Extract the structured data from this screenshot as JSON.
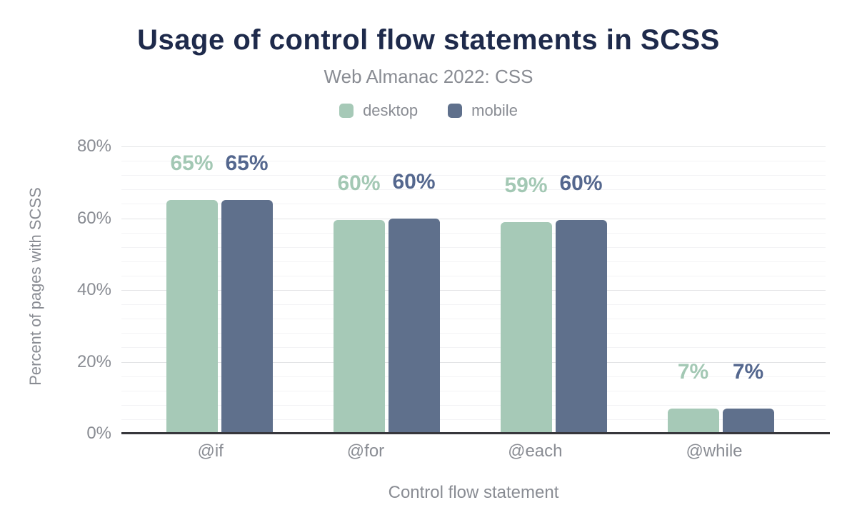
{
  "chart_data": {
    "type": "bar",
    "title": "Usage of control flow statements in SCSS",
    "subtitle": "Web Almanac 2022: CSS",
    "xlabel": "Control flow statement",
    "ylabel": "Percent of pages with SCSS",
    "categories": [
      "@if",
      "@for",
      "@each",
      "@while"
    ],
    "series": [
      {
        "name": "desktop",
        "color": "#a6c9b7",
        "label_color": "#a3c8b4",
        "values": [
          65,
          59.5,
          59,
          7
        ],
        "labels": [
          "65%",
          "60%",
          "59%",
          "7%"
        ]
      },
      {
        "name": "mobile",
        "color": "#5f708c",
        "label_color": "#54678e",
        "values": [
          65,
          60,
          59.5,
          7
        ],
        "labels": [
          "65%",
          "60%",
          "60%",
          "7%"
        ]
      }
    ],
    "ylim": [
      0,
      80
    ],
    "yticks": [
      0,
      20,
      40,
      60,
      80
    ],
    "ytick_labels": [
      "0%",
      "20%",
      "40%",
      "60%",
      "80%"
    ],
    "minor_grid_step": 4,
    "major_grid_step": 20,
    "grid": true,
    "legend_position": "top"
  },
  "colors": {
    "title": "#1e2a4b",
    "muted_text": "#898c93",
    "axis_line": "#37373c",
    "grid_major": "#e3e4e6",
    "grid_minor": "#f3f3f5",
    "background": "#ffffff"
  }
}
